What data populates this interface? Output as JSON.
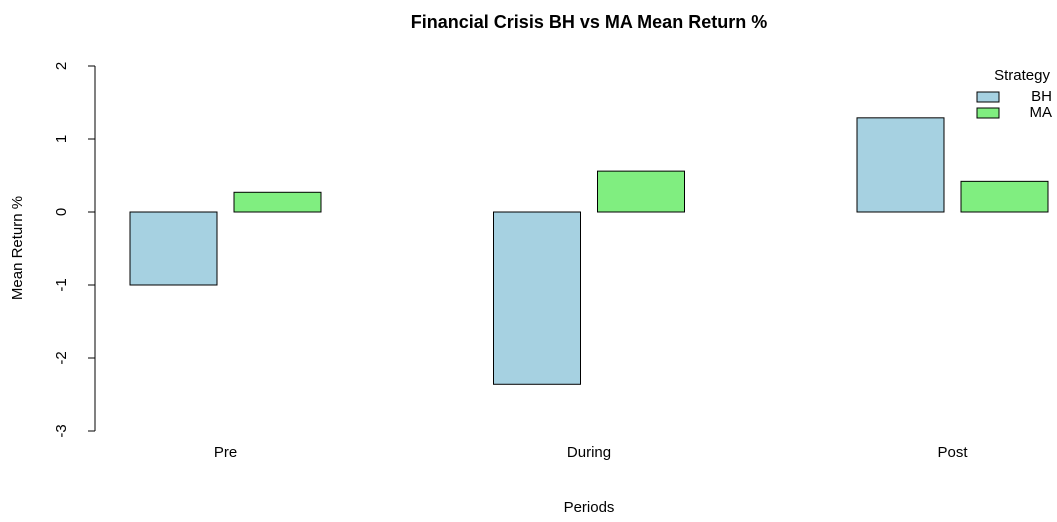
{
  "chart_data": {
    "type": "bar",
    "title": "Financial Crisis BH vs MA Mean Return %",
    "x_label": "Periods",
    "y_label": "Mean Return %",
    "categories": [
      "Pre",
      "During",
      "Post"
    ],
    "series": [
      {
        "name": "BH",
        "color": "#a6d1e1",
        "values": [
          -1.0,
          -2.36,
          1.29
        ]
      },
      {
        "name": "MA",
        "color": "#80ee80",
        "values": [
          0.27,
          0.56,
          0.42
        ]
      }
    ],
    "legend_title": "Strategy",
    "legend": "top-right",
    "ylim": [
      -3,
      2
    ],
    "yticks": [
      -3,
      -2,
      -1,
      0,
      1,
      2
    ]
  }
}
